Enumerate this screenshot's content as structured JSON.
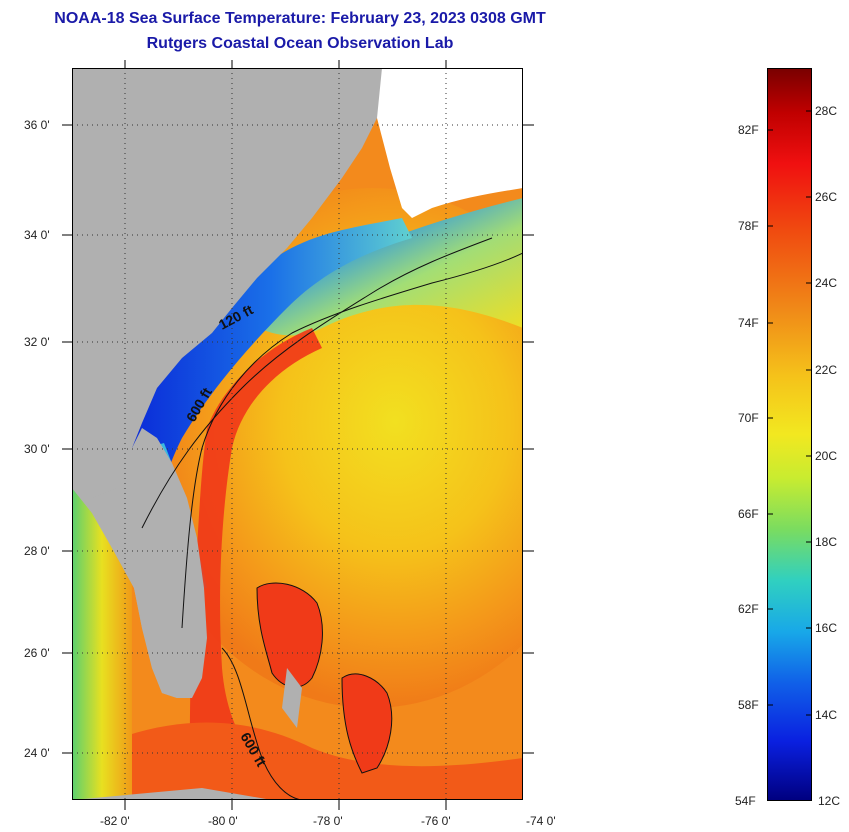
{
  "title_line1": "NOAA-18 Sea Surface Temperature:  February 23, 2023 0308 GMT",
  "title_line2": "Rutgers Coastal Ocean Observation Lab",
  "lat_labels": [
    "36 0'",
    "34 0'",
    "32 0'",
    "30 0'",
    "28 0'",
    "26 0'",
    "24 0'"
  ],
  "lon_labels": [
    "-82 0'",
    "-80 0'",
    "-78 0'",
    "-76 0'",
    "-74 0'"
  ],
  "contour_labels": [
    "120 ft",
    "600 ft",
    "600 ft"
  ],
  "colorbar": {
    "fahrenheit": [
      "82F",
      "78F",
      "74F",
      "70F",
      "66F",
      "62F",
      "58F",
      "54F"
    ],
    "celsius": [
      "28C",
      "26C",
      "24C",
      "22C",
      "20C",
      "18C",
      "16C",
      "14C",
      "12C"
    ]
  },
  "colors": {
    "land": "#b0b0b0",
    "title": "#1a1aa8",
    "warm": "#f03a18",
    "cold": "#0a2ad8"
  }
}
